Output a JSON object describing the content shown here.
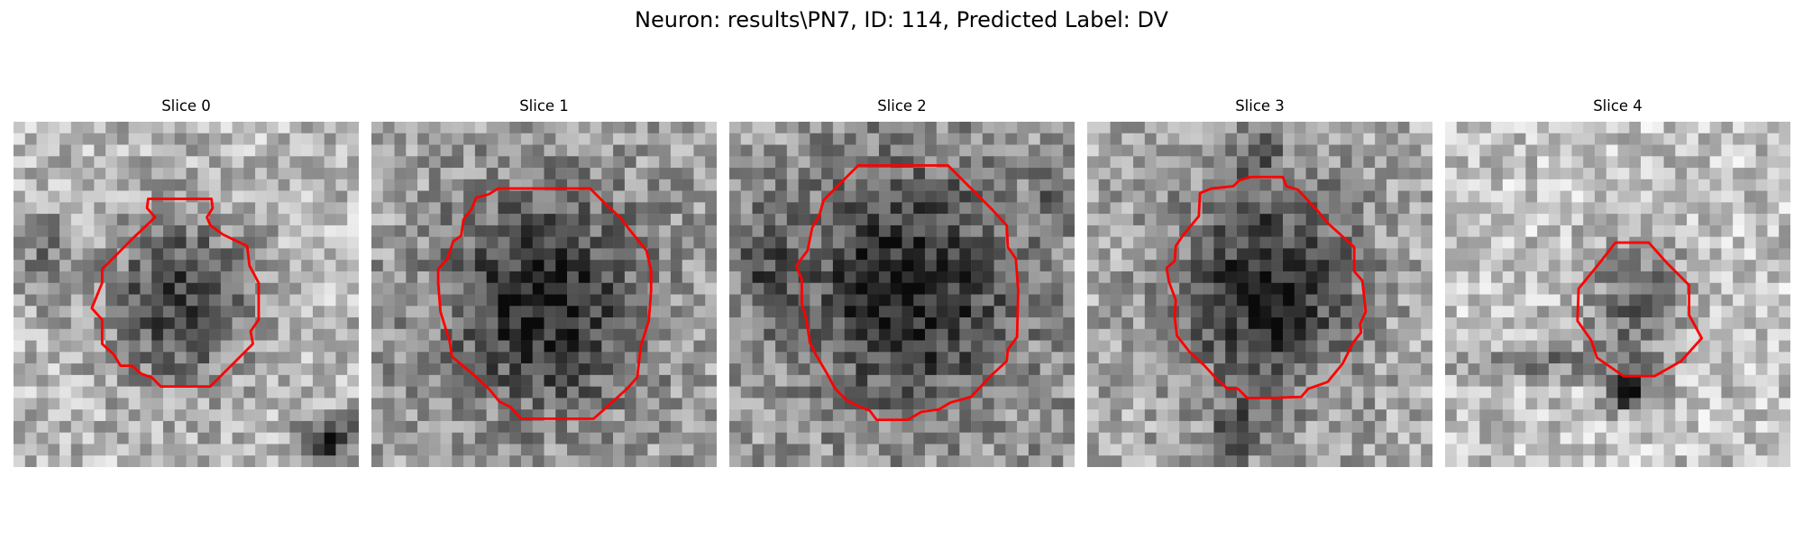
{
  "figure": {
    "title": "Neuron: results\\PN7, ID: 114, Predicted Label: DV"
  },
  "slices": [
    {
      "title": "Slice 0"
    },
    {
      "title": "Slice 1"
    },
    {
      "title": "Slice 2"
    },
    {
      "title": "Slice 3"
    },
    {
      "title": "Slice 4"
    }
  ],
  "colors": {
    "contour": "#ff0000",
    "colormap": "grayscale"
  }
}
